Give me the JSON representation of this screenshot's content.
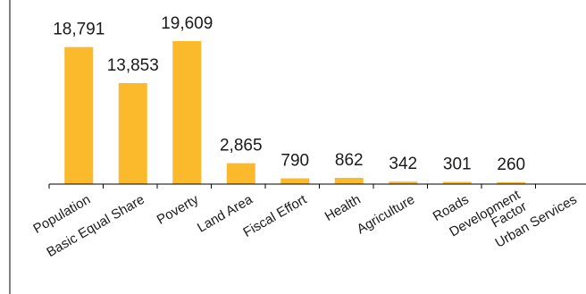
{
  "chart_data": {
    "type": "bar",
    "categories": [
      "Population",
      "Basic Equal Share",
      "Poverty",
      "Land Area",
      "Fiscal Effort",
      "Health",
      "Agriculture",
      "Roads",
      "Development Factor",
      "Urban Services"
    ],
    "category_lines": [
      [
        "Population"
      ],
      [
        "Basic Equal Share"
      ],
      [
        "Poverty"
      ],
      [
        "Land Area"
      ],
      [
        "Fiscal Effort"
      ],
      [
        "Health"
      ],
      [
        "Agriculture"
      ],
      [
        "Roads"
      ],
      [
        "Development",
        "Factor"
      ],
      [
        "Urban Services"
      ]
    ],
    "values": [
      18791,
      13853,
      19609,
      2865,
      790,
      862,
      342,
      301,
      260,
      0
    ],
    "data_labels": [
      "18,791",
      "13,853",
      "19,609",
      "2,865",
      "790",
      "862",
      "342",
      "301",
      "260",
      ""
    ],
    "ylim": [
      0,
      21000
    ],
    "grid": false,
    "legend": "none",
    "bar_color": "#FBBA2B"
  }
}
